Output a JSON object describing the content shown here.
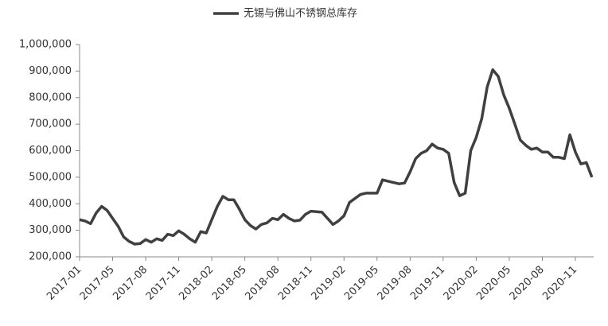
{
  "chart_data": {
    "type": "line",
    "series": [
      {
        "name": "无锡与佛山不锈钢总库存",
        "color": "#404040",
        "values": [
          340000,
          335000,
          325000,
          365000,
          390000,
          375000,
          345000,
          315000,
          275000,
          258000,
          248000,
          250000,
          265000,
          255000,
          268000,
          262000,
          285000,
          280000,
          298000,
          285000,
          268000,
          255000,
          295000,
          290000,
          340000,
          390000,
          428000,
          415000,
          415000,
          380000,
          340000,
          318000,
          305000,
          322000,
          328000,
          345000,
          340000,
          360000,
          345000,
          335000,
          338000,
          360000,
          372000,
          370000,
          368000,
          345000,
          322000,
          335000,
          355000,
          405000,
          420000,
          435000,
          440000,
          440000,
          440000,
          490000,
          485000,
          480000,
          475000,
          478000,
          520000,
          570000,
          590000,
          600000,
          625000,
          610000,
          605000,
          590000,
          480000,
          430000,
          440000,
          600000,
          650000,
          720000,
          840000,
          905000,
          880000,
          810000,
          760000,
          700000,
          640000,
          620000,
          605000,
          610000,
          595000,
          595000,
          575000,
          575000,
          570000,
          660000,
          595000,
          550000,
          555000,
          500000
        ]
      }
    ],
    "categories": [
      "2017-01",
      null,
      null,
      null,
      null,
      null,
      "2017-05",
      null,
      null,
      null,
      null,
      null,
      "2017-08",
      null,
      null,
      null,
      null,
      null,
      "2017-11",
      null,
      null,
      null,
      null,
      null,
      "2018-02",
      null,
      null,
      null,
      null,
      null,
      "2018-05",
      null,
      null,
      null,
      null,
      null,
      "2018-08",
      null,
      null,
      null,
      null,
      null,
      "2018-11",
      null,
      null,
      null,
      null,
      null,
      "2019-02",
      null,
      null,
      null,
      null,
      null,
      "2019-05",
      null,
      null,
      null,
      null,
      null,
      "2019-08",
      null,
      null,
      null,
      null,
      null,
      "2019-11",
      null,
      null,
      null,
      null,
      null,
      "2020-02",
      null,
      null,
      null,
      null,
      null,
      "2020-05",
      null,
      null,
      null,
      null,
      null,
      "2020-08",
      null,
      null,
      null,
      null,
      null,
      "2020-11",
      null,
      null,
      null
    ],
    "ylim": [
      200000,
      1000000
    ],
    "yticks": [
      {
        "value": 200000,
        "label": "200,000"
      },
      {
        "value": 300000,
        "label": "300,000"
      },
      {
        "value": 400000,
        "label": "400,000"
      },
      {
        "value": 500000,
        "label": "500,000"
      },
      {
        "value": 600000,
        "label": "600,000"
      },
      {
        "value": 700000,
        "label": "700,000"
      },
      {
        "value": 800000,
        "label": "800,000"
      },
      {
        "value": 900000,
        "label": "900,000"
      },
      {
        "value": 1000000,
        "label": "1,000,000"
      }
    ],
    "grid": false,
    "legend": "top"
  }
}
